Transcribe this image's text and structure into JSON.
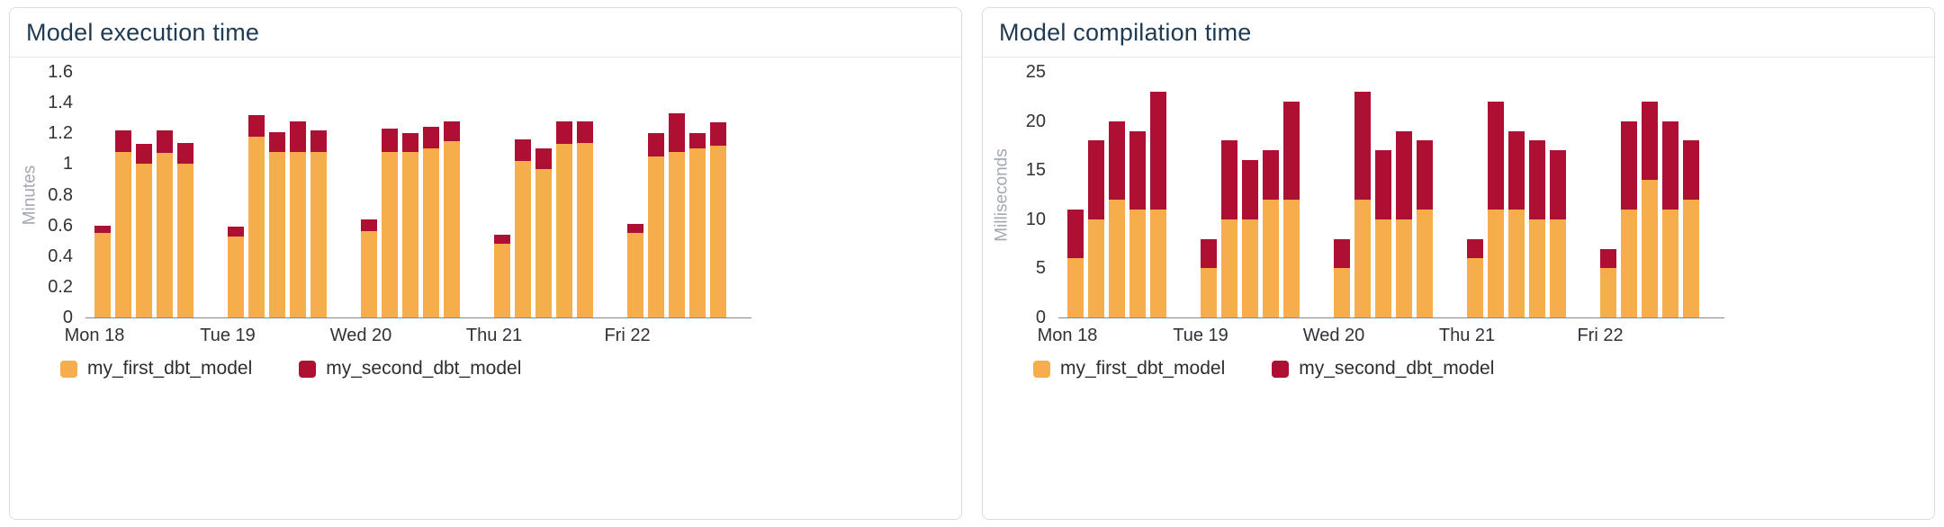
{
  "colors": {
    "page_bg": "#ffffff",
    "card_border": "#d9dde2",
    "header_border": "#e6e8ec",
    "title_text": "#1f3b54",
    "axis_text": "#2f3337",
    "muted_text": "#a3a9b0",
    "axis_line": "#85898f",
    "legend_text": "#2b2e33",
    "first_model": "#f6ae4c",
    "second_model": "#ae1033"
  },
  "chart_data": [
    {
      "type": "bar",
      "stacked": true,
      "title": "Model execution time",
      "ylabel": "Minutes",
      "xlabel": "",
      "ylim": [
        0,
        1.6
      ],
      "grid": false,
      "legend_position": "bottom-left",
      "ytick_values": [
        0,
        0.2,
        0.4,
        0.6,
        0.8,
        1,
        1.2,
        1.4,
        1.6
      ],
      "ytick_labels": [
        "0",
        "0.2",
        "0.4",
        "0.6",
        "0.8",
        "1",
        "1.2",
        "1.4",
        "1.6"
      ],
      "categories": [
        "Mon 18",
        "Tue 19",
        "Wed 20",
        "Thu 21",
        "Fri 22"
      ],
      "series": [
        {
          "name": "my_first_dbt_model",
          "color": "#f6ae4c",
          "values": [
            [
              0.55,
              1.08,
              1.0,
              1.07,
              1.0
            ],
            [
              0.53,
              1.18,
              1.08,
              1.08,
              1.08
            ],
            [
              0.56,
              1.08,
              1.08,
              1.1,
              1.15
            ],
            [
              0.48,
              1.02,
              0.97,
              1.13,
              1.14
            ],
            [
              0.55,
              1.05,
              1.08,
              1.1,
              1.12
            ]
          ]
        },
        {
          "name": "my_second_dbt_model",
          "color": "#ae1033",
          "values": [
            [
              0.05,
              0.14,
              0.13,
              0.15,
              0.14
            ],
            [
              0.06,
              0.14,
              0.13,
              0.2,
              0.14
            ],
            [
              0.08,
              0.15,
              0.12,
              0.14,
              0.13
            ],
            [
              0.06,
              0.14,
              0.13,
              0.15,
              0.14
            ],
            [
              0.06,
              0.15,
              0.25,
              0.1,
              0.15
            ]
          ]
        }
      ]
    },
    {
      "type": "bar",
      "stacked": true,
      "title": "Model compilation time",
      "ylabel": "Milliseconds",
      "xlabel": "",
      "ylim": [
        0,
        25
      ],
      "grid": false,
      "legend_position": "bottom-left",
      "ytick_values": [
        0,
        5,
        10,
        15,
        20,
        25
      ],
      "ytick_labels": [
        "0",
        "5",
        "10",
        "15",
        "20",
        "25"
      ],
      "categories": [
        "Mon 18",
        "Tue 19",
        "Wed 20",
        "Thu 21",
        "Fri 22"
      ],
      "series": [
        {
          "name": "my_first_dbt_model",
          "color": "#f6ae4c",
          "values": [
            [
              6,
              10,
              12,
              11,
              11
            ],
            [
              5,
              10,
              10,
              12,
              12
            ],
            [
              5,
              12,
              10,
              10,
              11
            ],
            [
              6,
              11,
              11,
              10,
              10
            ],
            [
              5,
              11,
              14,
              11,
              12
            ]
          ]
        },
        {
          "name": "my_second_dbt_model",
          "color": "#ae1033",
          "values": [
            [
              5,
              8,
              8,
              8,
              12
            ],
            [
              3,
              8,
              6,
              5,
              10
            ],
            [
              3,
              11,
              7,
              9,
              7
            ],
            [
              2,
              11,
              8,
              8,
              7
            ],
            [
              2,
              9,
              8,
              9,
              6
            ]
          ]
        }
      ]
    }
  ]
}
